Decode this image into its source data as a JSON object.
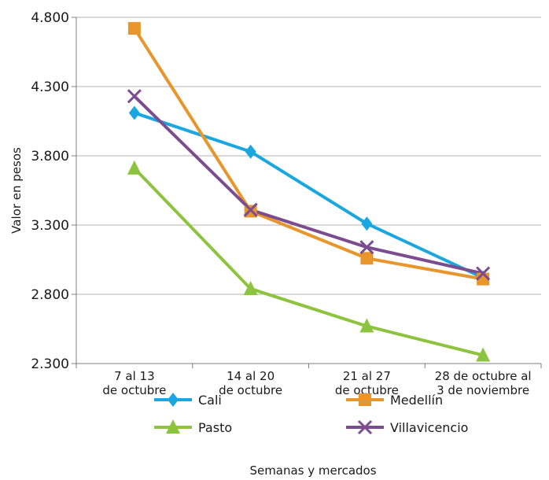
{
  "chart_data": {
    "type": "line",
    "categories": [
      [
        "7 al 13",
        "de octubre"
      ],
      [
        "14 al 20",
        "de octubre"
      ],
      [
        "21 al 27",
        "de octubre"
      ],
      [
        "28 de octubre al",
        "3 de noviembre"
      ]
    ],
    "yticks": [
      "2.300",
      "2.800",
      "3.300",
      "3.800",
      "4.300",
      "4.800"
    ],
    "ytick_values": [
      2300,
      2800,
      3300,
      3800,
      4300,
      4800
    ],
    "ylim": [
      2300,
      4800
    ],
    "ylabel": "Valor en pesos",
    "xlabel": "Semanas y mercados",
    "grid": "horizontal",
    "legend_position": "bottom",
    "series": [
      {
        "name": "Cali",
        "values": [
          4110,
          3830,
          3310,
          2920
        ],
        "color": "#1aa7e0",
        "marker": "diamond"
      },
      {
        "name": "Medellín",
        "values": [
          4720,
          3400,
          3060,
          2910
        ],
        "color": "#e8962b",
        "marker": "square"
      },
      {
        "name": "Pasto",
        "values": [
          3710,
          2840,
          2570,
          2360
        ],
        "color": "#8cc43f",
        "marker": "triangle"
      },
      {
        "name": "Villavicencio",
        "values": [
          4230,
          3410,
          3140,
          2950
        ],
        "color": "#7b4c8e",
        "marker": "x"
      }
    ]
  }
}
